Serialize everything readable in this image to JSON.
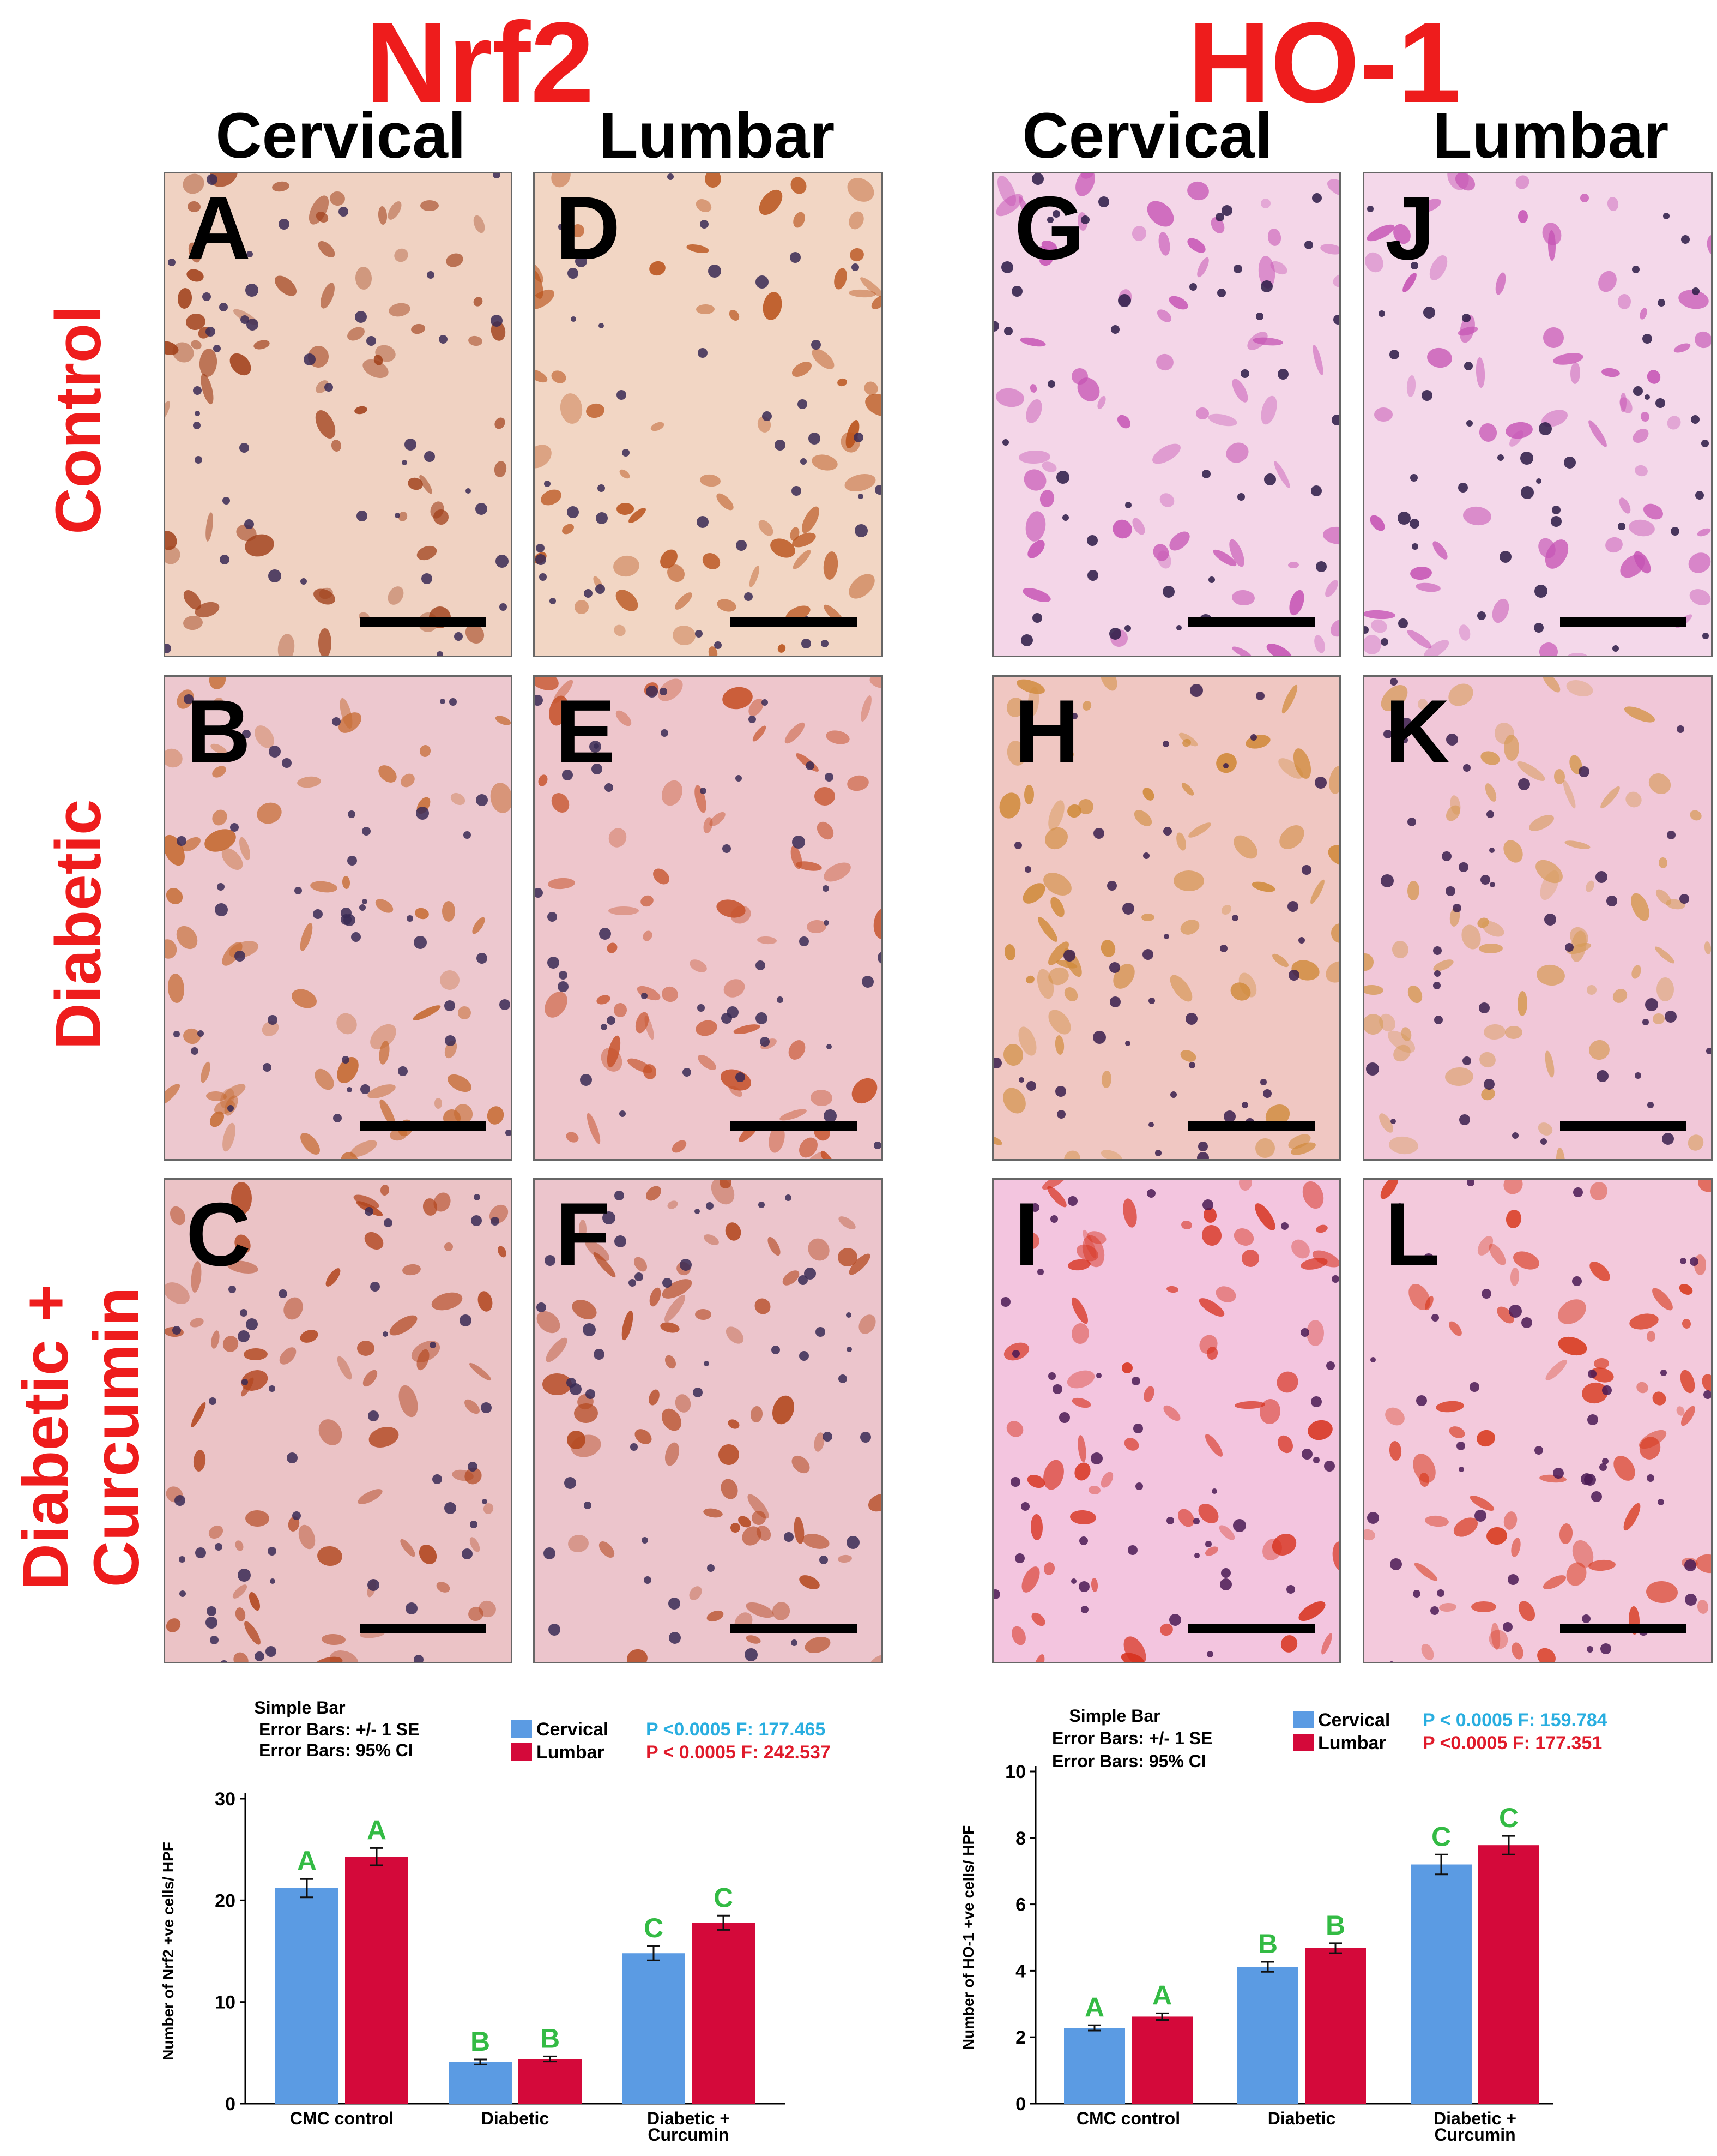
{
  "header": {
    "nrf2_title": "Nrf2",
    "ho1_title": "HO-1",
    "col_cervical": "Cervical",
    "col_lumbar": "Lumbar"
  },
  "rows": {
    "control": "Control",
    "diabetic": "Diabetic",
    "curcumin_line1": "Diabetic +",
    "curcumin_line2": "Curcumin"
  },
  "panels": [
    {
      "letter": "A",
      "bg": "#f0d2c2",
      "stain": "#a0401a",
      "nuc": "#3a2a55"
    },
    {
      "letter": "D",
      "bg": "#f2d6c4",
      "stain": "#b9531c",
      "nuc": "#3a2a55"
    },
    {
      "letter": "G",
      "bg": "#f4d6e8",
      "stain": "#c653b4",
      "nuc": "#2a1a45"
    },
    {
      "letter": "J",
      "bg": "#f4d8ea",
      "stain": "#c653b4",
      "nuc": "#2a1a45"
    },
    {
      "letter": "B",
      "bg": "#edc8cf",
      "stain": "#c56a30",
      "nuc": "#3a2a55"
    },
    {
      "letter": "E",
      "bg": "#eec6cc",
      "stain": "#c6522a",
      "nuc": "#3a2a55"
    },
    {
      "letter": "H",
      "bg": "#f0c7c2",
      "stain": "#d08a3a",
      "nuc": "#3a1f4d"
    },
    {
      "letter": "K",
      "bg": "#f1c7d8",
      "stain": "#d69a55",
      "nuc": "#3a1f4d"
    },
    {
      "letter": "C",
      "bg": "#ebc3c6",
      "stain": "#b2461e",
      "nuc": "#3a2a55"
    },
    {
      "letter": "F",
      "bg": "#ecc5cc",
      "stain": "#b4481f",
      "nuc": "#3a2a55"
    },
    {
      "letter": "I",
      "bg": "#f3c5df",
      "stain": "#d7321e",
      "nuc": "#4a1a55"
    },
    {
      "letter": "L",
      "bg": "#f3c9dc",
      "stain": "#d83a1e",
      "nuc": "#4a1a55"
    }
  ],
  "chart_data": [
    {
      "type": "bar",
      "categories": [
        "CMC control",
        "Diabetic",
        "Diabetic + Curcumin"
      ],
      "ylabel": "Number of Nrf2 +ve cells/ HPF",
      "ylim": [
        0,
        30
      ],
      "yticks": [
        0,
        10,
        20,
        30
      ],
      "info_lines": [
        "Simple Bar",
        "Error Bars: +/- 1 SE",
        "Error Bars: 95% CI"
      ],
      "series": [
        {
          "name": "Cervical",
          "color": "#5b9be3",
          "stat": "P <0.0005 F: 177.465",
          "stat_color": "#29aee0",
          "values": [
            21.2,
            4.1,
            14.8
          ],
          "errors": [
            0.9,
            0.25,
            0.7
          ],
          "letters": [
            "A",
            "B",
            "C"
          ]
        },
        {
          "name": "Lumbar",
          "color": "#d4093a",
          "stat": "P < 0.0005 F: 242.537",
          "stat_color": "#e01a2a",
          "values": [
            24.3,
            4.4,
            17.8
          ],
          "errors": [
            0.85,
            0.25,
            0.7
          ],
          "letters": [
            "A",
            "B",
            "C"
          ]
        }
      ],
      "letter_color": "#33bb44"
    },
    {
      "type": "bar",
      "categories": [
        "CMC control",
        "Diabetic",
        "Diabetic + Curcumin"
      ],
      "ylabel": "Number of HO-1 +ve cells/ HPF",
      "ylim": [
        0,
        10
      ],
      "yticks": [
        0,
        2,
        4,
        6,
        8,
        10
      ],
      "info_lines": [
        "Simple Bar",
        "Error Bars: +/- 1 SE",
        "Error Bars: 95% CI"
      ],
      "series": [
        {
          "name": "Cervical",
          "color": "#5b9be3",
          "stat": "P < 0.0005 F: 159.784",
          "stat_color": "#29aee0",
          "values": [
            2.28,
            4.12,
            7.2
          ],
          "errors": [
            0.08,
            0.15,
            0.3
          ],
          "letters": [
            "A",
            "B",
            "C"
          ]
        },
        {
          "name": "Lumbar",
          "color": "#d4093a",
          "stat": "P <0.0005  F: 177.351",
          "stat_color": "#e01a2a",
          "values": [
            2.62,
            4.68,
            7.78
          ],
          "errors": [
            0.1,
            0.15,
            0.28
          ],
          "letters": [
            "A",
            "B",
            "C"
          ]
        }
      ],
      "letter_color": "#33bb44"
    }
  ]
}
